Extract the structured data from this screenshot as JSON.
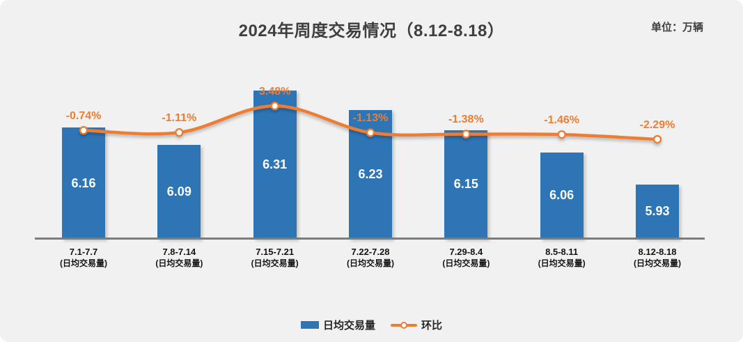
{
  "chart_data": {
    "type": "bar",
    "title": "2024年周度交易情况（8.12-8.18）",
    "unit_label": "单位：万辆",
    "categories": [
      "7.1-7.7",
      "7.8-7.14",
      "7.15-7.21",
      "7.22-7.28",
      "7.29-8.4",
      "8.5-8.11",
      "8.12-8.18"
    ],
    "category_sublabel": "(日均交易量)",
    "series": [
      {
        "name": "日均交易量",
        "kind": "bar",
        "color": "#2E75B6",
        "values": [
          6.16,
          6.09,
          6.31,
          6.23,
          6.15,
          6.06,
          5.93
        ],
        "labels": [
          "6.16",
          "6.09",
          "6.31",
          "6.23",
          "6.15",
          "6.06",
          "5.93"
        ]
      },
      {
        "name": "环比",
        "kind": "line",
        "color": "#ED7D31",
        "unit": "%",
        "values": [
          -0.74,
          -1.11,
          3.48,
          -1.13,
          -1.38,
          -1.46,
          -2.29
        ],
        "labels": [
          "-0.74%",
          "-1.11%",
          "3.48%",
          "-1.13%",
          "-1.38%",
          "-1.46%",
          "-2.29%"
        ]
      }
    ],
    "bar_axis_range": [
      5.71,
      6.46
    ],
    "line_axis_range": [
      -3.2,
      4.3
    ],
    "grid": false,
    "legend_position": "bottom",
    "background_color": "#F1F1F1",
    "axis_line_color": "#7C7C7C"
  }
}
